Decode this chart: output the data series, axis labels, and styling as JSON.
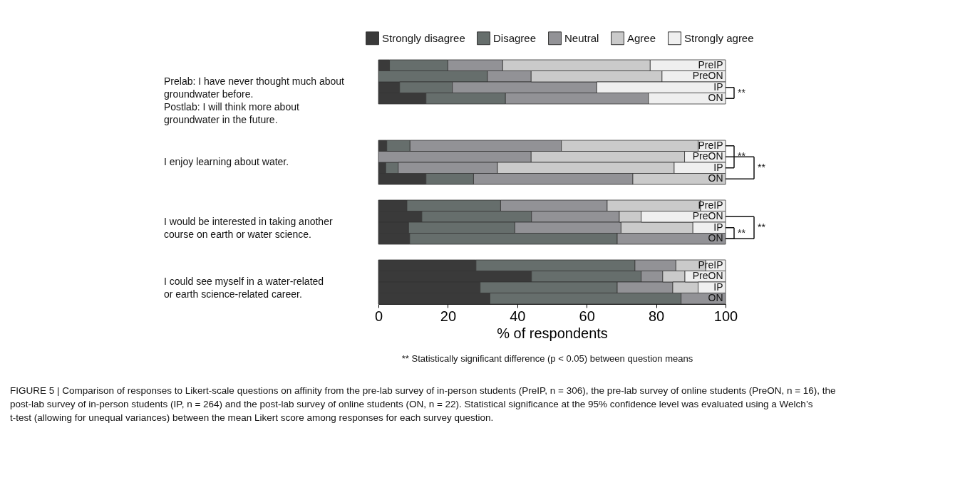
{
  "chart_data": [
    {
      "type": "bar",
      "orientation": "horizontal",
      "stacked": true,
      "ylabel": "Prelab: I have never thought much about groundwater before. Postlab: I will think more about groundwater in the future.",
      "categories": [
        "PreIP",
        "PreON",
        "IP",
        "ON"
      ],
      "xlim": [
        0,
        100
      ],
      "tick_labels": "y",
      "legend": "top",
      "grid": false,
      "annotations": [
        "**"
      ],
      "series": [
        {
          "name": "Strongly disagree",
          "color": "#3a3a3a",
          "values": [
            3.2,
            0,
            6.1,
            13.7
          ]
        },
        {
          "name": "Disagree",
          "color": "#666e6c",
          "values": [
            16.8,
            31.4,
            15.2,
            22.9
          ]
        },
        {
          "name": "Neutral",
          "color": "#929296",
          "values": [
            15.8,
            12.6,
            41.6,
            41.2
          ]
        },
        {
          "name": "Agree",
          "color": "#cacaca",
          "values": [
            42.5,
            37.7,
            0,
            0
          ]
        },
        {
          "name": "Strongly agree",
          "color": "#efefef",
          "values": [
            21.7,
            18.3,
            37.1,
            22.2
          ]
        }
      ]
    },
    {
      "type": "bar",
      "orientation": "horizontal",
      "stacked": true,
      "ylabel": "I enjoy learning about water.",
      "categories": [
        "PreIP",
        "PreON",
        "IP",
        "ON"
      ],
      "xlim": [
        0,
        100
      ],
      "tick_labels": "y",
      "grid": false,
      "annotations": [
        "**",
        "**"
      ],
      "series": [
        {
          "name": "Strongly disagree",
          "color": "#3a3a3a",
          "values": [
            2.4,
            0,
            2.1,
            13.7
          ]
        },
        {
          "name": "Disagree",
          "color": "#666e6c",
          "values": [
            6.7,
            0,
            3.6,
            13.7
          ]
        },
        {
          "name": "Neutral",
          "color": "#929296",
          "values": [
            43.6,
            44.0,
            28.6,
            45.9
          ]
        },
        {
          "name": "Agree",
          "color": "#cacaca",
          "values": [
            39.4,
            44.2,
            50.9,
            26.7
          ]
        },
        {
          "name": "Strongly agree",
          "color": "#efefef",
          "values": [
            7.9,
            11.8,
            14.8,
            0
          ]
        }
      ]
    },
    {
      "type": "bar",
      "orientation": "horizontal",
      "stacked": true,
      "ylabel": "I would be interested in taking another course on earth or water science.",
      "categories": [
        "PreIP",
        "PreON",
        "IP",
        "ON"
      ],
      "xlim": [
        0,
        100
      ],
      "tick_labels": "y",
      "grid": false,
      "annotations": [
        "**",
        "**"
      ],
      "series": [
        {
          "name": "Strongly disagree",
          "color": "#3a3a3a",
          "values": [
            8.2,
            12.5,
            8.7,
            9.0
          ]
        },
        {
          "name": "Disagree",
          "color": "#666e6c",
          "values": [
            27.0,
            31.6,
            30.6,
            59.8
          ]
        },
        {
          "name": "Neutral",
          "color": "#929296",
          "values": [
            30.7,
            25.3,
            30.6,
            31.2
          ]
        },
        {
          "name": "Agree",
          "color": "#cacaca",
          "values": [
            26.9,
            6.3,
            20.7,
            0
          ]
        },
        {
          "name": "Strongly agree",
          "color": "#efefef",
          "values": [
            7.2,
            24.3,
            9.4,
            0
          ]
        }
      ]
    },
    {
      "type": "bar",
      "orientation": "horizontal",
      "stacked": true,
      "ylabel": "I could see myself in a water-related or earth science-related career.",
      "categories": [
        "PreIP",
        "PreON",
        "IP",
        "ON"
      ],
      "xlim": [
        0,
        100
      ],
      "xticks": [
        0,
        20,
        40,
        60,
        80,
        100
      ],
      "xlabel": "% of respondents",
      "grid": false,
      "annotations": [
        "** Statistically significant difference (p < 0.05) between question means",
        "FIGURE 5 | Comparison of responses to Likert-scale questions on affinity from the pre-lab survey of in-person students (PreIP, n = 306), the pre-lab survey of online students (PreON, n = 16), the post-lab survey of in-person students (IP, n = 264) and the post-lab survey of online students (ON, n = 22). Statistical significance at the 95% confidence level was evaluated using a Welch’s t-test (allowing for unequal variances) between the mean Likert score among responses for each survey question."
      ],
      "series": [
        {
          "name": "Strongly disagree",
          "color": "#3a3a3a",
          "values": [
            28.1,
            44.1,
            29.3,
            32.1
          ]
        },
        {
          "name": "Disagree",
          "color": "#666e6c",
          "values": [
            45.8,
            31.6,
            39.5,
            55.1
          ]
        },
        {
          "name": "Neutral",
          "color": "#929296",
          "values": [
            11.8,
            6.2,
            16.0,
            12.8
          ]
        },
        {
          "name": "Agree",
          "color": "#cacaca",
          "values": [
            8.6,
            6.4,
            7.3,
            0
          ]
        },
        {
          "name": "Strongly agree",
          "color": "#efefef",
          "values": [
            5.7,
            11.7,
            7.9,
            0
          ]
        }
      ]
    }
  ]
}
